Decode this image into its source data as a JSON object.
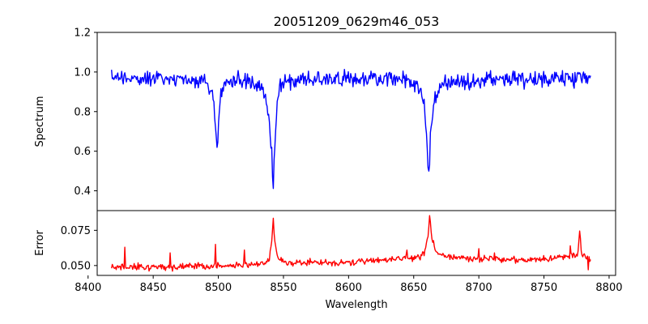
{
  "chart_data": [
    {
      "type": "line",
      "title": "20051209_0629m46_053",
      "xlabel": "",
      "ylabel": "Spectrum",
      "xlim": [
        8407,
        8805
      ],
      "ylim": [
        0.3,
        1.2
      ],
      "yticks": [
        0.4,
        0.6,
        0.8,
        1.0,
        1.2
      ],
      "ytick_labels": [
        "0.4",
        "0.6",
        "0.8",
        "1.0",
        "1.2"
      ],
      "line_color": "#0000ff",
      "x_range": [
        8418,
        8786
      ],
      "anchors_x": [
        8418,
        8440,
        8470,
        8490,
        8496,
        8498,
        8499.2,
        8500,
        8502,
        8506,
        8520,
        8532,
        8536,
        8539,
        8541,
        8542.1,
        8543,
        8545,
        8548,
        8560,
        8600,
        8640,
        8652,
        8658,
        8660,
        8661.5,
        8662.2,
        8663,
        8666,
        8672,
        8700,
        8740,
        8786
      ],
      "anchors_y": [
        0.98,
        0.97,
        0.97,
        0.96,
        0.9,
        0.72,
        0.56,
        0.72,
        0.9,
        0.95,
        0.96,
        0.93,
        0.88,
        0.76,
        0.6,
        0.36,
        0.58,
        0.84,
        0.93,
        0.96,
        0.97,
        0.96,
        0.94,
        0.86,
        0.66,
        0.46,
        0.55,
        0.72,
        0.87,
        0.94,
        0.96,
        0.96,
        0.97
      ],
      "noise_amplitude": 0.06
    },
    {
      "type": "line",
      "title": "",
      "xlabel": "Wavelength",
      "ylabel": "Error",
      "xlim": [
        8407,
        8805
      ],
      "ylim": [
        0.043,
        0.089
      ],
      "xticks": [
        8400,
        8450,
        8500,
        8550,
        8600,
        8650,
        8700,
        8750,
        8800
      ],
      "xtick_labels": [
        "8400",
        "8450",
        "8500",
        "8550",
        "8600",
        "8650",
        "8700",
        "8750",
        "8800"
      ],
      "yticks": [
        0.05,
        0.075
      ],
      "ytick_labels": [
        "0.050",
        "0.075"
      ],
      "line_color": "#ff0000",
      "x_range": [
        8418,
        8786
      ],
      "anchors_x": [
        8418,
        8430,
        8480,
        8530,
        8536,
        8539,
        8541,
        8542.2,
        8543.5,
        8546,
        8552,
        8600,
        8650,
        8656,
        8659,
        8661,
        8662.2,
        8663.5,
        8667,
        8675,
        8720,
        8760,
        8776,
        8777.5,
        8779,
        8786
      ],
      "anchors_y": [
        0.0485,
        0.049,
        0.0495,
        0.0505,
        0.0515,
        0.056,
        0.066,
        0.083,
        0.066,
        0.055,
        0.052,
        0.052,
        0.0555,
        0.057,
        0.061,
        0.072,
        0.086,
        0.072,
        0.06,
        0.056,
        0.054,
        0.055,
        0.058,
        0.075,
        0.058,
        0.053
      ],
      "noise_amplitude": 0.0035,
      "spikes": [
        {
          "x": 8428,
          "y": 0.063
        },
        {
          "x": 8463,
          "y": 0.059
        },
        {
          "x": 8465,
          "y": 0.046
        },
        {
          "x": 8498,
          "y": 0.065
        },
        {
          "x": 8520,
          "y": 0.061
        },
        {
          "x": 8645,
          "y": 0.061
        },
        {
          "x": 8700,
          "y": 0.062
        },
        {
          "x": 8712,
          "y": 0.059
        },
        {
          "x": 8770,
          "y": 0.064
        },
        {
          "x": 8784,
          "y": 0.047
        }
      ]
    }
  ]
}
